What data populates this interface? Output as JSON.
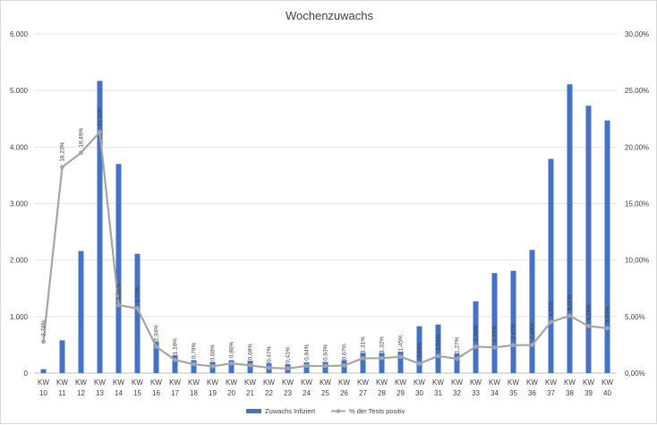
{
  "chart_data": {
    "type": "bar",
    "title": "Wochenzuwachs",
    "categories": [
      "KW 10",
      "KW 11",
      "KW 12",
      "KW 13",
      "KW 14",
      "KW 15",
      "KW 16",
      "KW 17",
      "KW 18",
      "KW 19",
      "KW 20",
      "KW 21",
      "KW 22",
      "KW 23",
      "KW 24",
      "KW 25",
      "KW 26",
      "KW 27",
      "KW 28",
      "KW 29",
      "KW 30",
      "KW 31",
      "KW 32",
      "KW 33",
      "KW 34",
      "KW 35",
      "KW 36",
      "KW 37",
      "KW 38",
      "KW 39",
      "KW 40"
    ],
    "y_ticks": [
      "0",
      "1.000",
      "2.000",
      "3.000",
      "4.000",
      "5.000",
      "6.000"
    ],
    "y2_ticks": [
      "0,00%",
      "5,00%",
      "10,00%",
      "15,00%",
      "20,00%",
      "25,00%",
      "30,00%"
    ],
    "ylim": [
      0,
      6000
    ],
    "y2lim": [
      0,
      30
    ],
    "grid": true,
    "legend_position": "bottom",
    "series": [
      {
        "name": "Zuwachs Infiziert",
        "type": "bar",
        "axis": "left",
        "color": "#4472c4",
        "values": [
          70,
          580,
          2160,
          5170,
          3700,
          2110,
          560,
          320,
          230,
          200,
          230,
          220,
          180,
          160,
          190,
          200,
          230,
          360,
          360,
          380,
          830,
          860,
          350,
          1270,
          1770,
          1810,
          2180,
          3790,
          5110,
          4730,
          4470
        ]
      },
      {
        "name": "% der Tests positiv",
        "type": "line",
        "axis": "right",
        "color": "#a5a5a5",
        "values": [
          2.78,
          18.23,
          19.49,
          21.33,
          6.01,
          5.73,
          2.34,
          1.16,
          0.79,
          0.6,
          0.86,
          0.69,
          0.47,
          0.41,
          0.64,
          0.63,
          0.67,
          1.31,
          1.32,
          1.45,
          0.84,
          1.51,
          1.27,
          2.34,
          2.27,
          2.47,
          2.49,
          4.52,
          5.07,
          4.16,
          3.97
        ],
        "labels": [
          "2,78%",
          "18,23%",
          "19,49%",
          "21,33%",
          "6,01%",
          "5,73%",
          "2,34%",
          "1,16%",
          "0,79%",
          "0,60%",
          "0,86%",
          "0,69%",
          "0,47%",
          "0,41%",
          "0,64%",
          "0,63%",
          "0,67%",
          "1,31%",
          "1,32%",
          "1,45%",
          "0,84%",
          "1,51%",
          "1,27%",
          "2,34%",
          "2,27%",
          "2,47%",
          "2,49%",
          "4,52%",
          "5,07%",
          "4,16%",
          "3,97%"
        ]
      }
    ]
  }
}
